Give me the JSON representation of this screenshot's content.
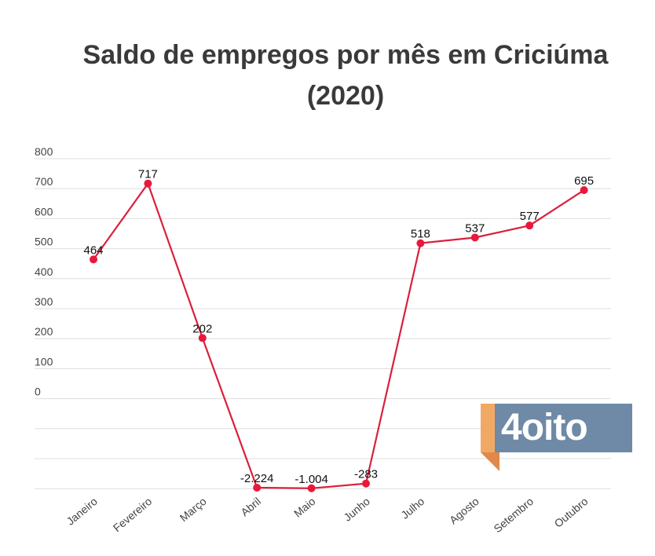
{
  "chart_data": {
    "type": "line",
    "title_line1": "Saldo de empregos por mês em Criciúma",
    "title_line2": "(2020)",
    "xlabel": "",
    "ylabel": "",
    "categories": [
      "Janeiro",
      "Fevereiro",
      "Março",
      "Abril",
      "Maio",
      "Junho",
      "Julho",
      "Agosto",
      "Setembro",
      "Outubro"
    ],
    "values": [
      464,
      717,
      202,
      -2224,
      -1004,
      -283,
      518,
      537,
      577,
      695
    ],
    "data_labels": [
      "464",
      "717",
      "202",
      "-2.224",
      "-1.004",
      "-283",
      "518",
      "537",
      "577",
      "695"
    ],
    "y_ticks": [
      800,
      700,
      600,
      500,
      400,
      300,
      200,
      100,
      0
    ],
    "ylim": [
      -300,
      800
    ],
    "grid": true,
    "legend": "none",
    "colors": {
      "line": "#d9203c",
      "marker": "#e8193c",
      "grid": "#dddddd"
    }
  },
  "logo": {
    "text": "4oito",
    "colors": {
      "box": "#6e8aa6",
      "tab": "#f2a865"
    }
  }
}
